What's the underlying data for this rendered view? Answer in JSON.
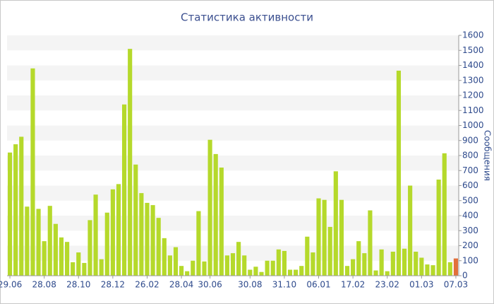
{
  "chart_data": {
    "type": "bar",
    "title": "Статистика активности",
    "y_label": "Сообщения",
    "categories": [
      "29.06",
      null,
      null,
      null,
      null,
      null,
      "28.08",
      null,
      null,
      null,
      null,
      null,
      "28.10",
      null,
      null,
      null,
      null,
      null,
      "28.12",
      null,
      null,
      null,
      null,
      null,
      "26.02",
      null,
      null,
      null,
      null,
      null,
      "28.04",
      null,
      null,
      null,
      null,
      "30.06",
      null,
      null,
      null,
      null,
      null,
      null,
      "30.08",
      null,
      null,
      null,
      null,
      null,
      "31.10",
      null,
      null,
      null,
      null,
      null,
      "06.01",
      null,
      null,
      null,
      null,
      null,
      "17.02",
      null,
      null,
      null,
      null,
      null,
      "23.02",
      null,
      null,
      null,
      null,
      null,
      "01.03",
      null,
      null,
      null,
      null,
      null,
      "07.03"
    ],
    "values": [
      820,
      875,
      925,
      460,
      1380,
      445,
      230,
      465,
      345,
      255,
      225,
      90,
      155,
      85,
      370,
      540,
      110,
      420,
      575,
      610,
      1140,
      1510,
      740,
      550,
      485,
      470,
      385,
      250,
      135,
      190,
      65,
      30,
      100,
      430,
      95,
      905,
      810,
      720,
      135,
      150,
      225,
      135,
      40,
      60,
      25,
      100,
      100,
      175,
      165,
      40,
      40,
      65,
      260,
      155,
      515,
      505,
      325,
      695,
      505,
      65,
      110,
      230,
      150,
      435,
      35,
      175,
      30,
      160,
      1365,
      180,
      600,
      160,
      120,
      75,
      70,
      640,
      815,
      90,
      115
    ],
    "color": "#b5d92b",
    "last_color": "#e2703a",
    "ylim": [
      0,
      1600
    ],
    "yticks": [
      0,
      100,
      200,
      300,
      400,
      500,
      600,
      700,
      800,
      900,
      1000,
      1100,
      1200,
      1300,
      1400,
      1500,
      1600
    ],
    "grid": "bands"
  }
}
